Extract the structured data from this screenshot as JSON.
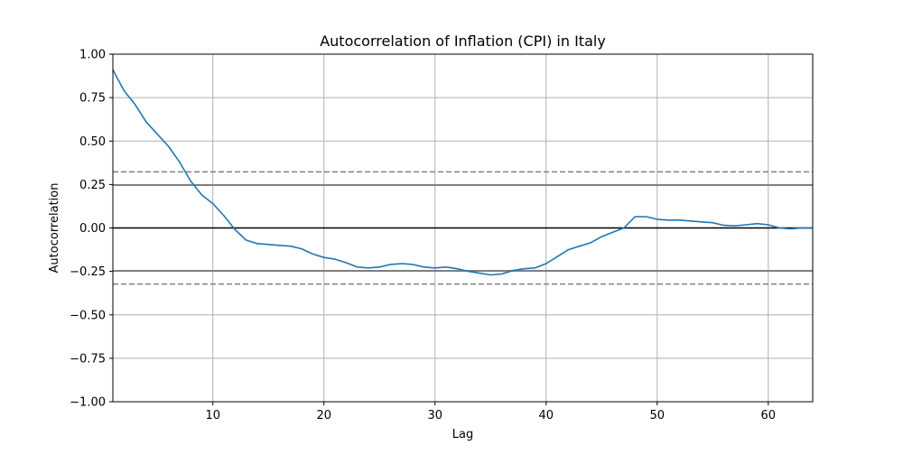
{
  "chart_data": {
    "type": "line",
    "title": "Autocorrelation of Inflation (CPI) in Italy",
    "xlabel": "Lag",
    "ylabel": "Autocorrelation",
    "xlim": [
      1,
      64
    ],
    "ylim": [
      -1.0,
      1.0
    ],
    "xticks": [
      10,
      20,
      30,
      40,
      50,
      60
    ],
    "xtick_labels": [
      "10",
      "20",
      "30",
      "40",
      "50",
      "60"
    ],
    "yticks": [
      -1.0,
      -0.75,
      -0.5,
      -0.25,
      0.0,
      0.25,
      0.5,
      0.75,
      1.0
    ],
    "ytick_labels": [
      "−1.00",
      "−0.75",
      "−0.50",
      "−0.25",
      "0.00",
      "0.25",
      "0.50",
      "0.75",
      "1.00"
    ],
    "grid": true,
    "reference_lines": {
      "zero": 0.0,
      "solid": [
        0.247,
        -0.247
      ],
      "dashed": [
        0.323,
        -0.323
      ]
    },
    "series": [
      {
        "color": "#1f77b4",
        "x": [
          1,
          2,
          3,
          4,
          5,
          6,
          7,
          8,
          9,
          10,
          11,
          12,
          13,
          14,
          15,
          16,
          17,
          18,
          19,
          20,
          21,
          22,
          23,
          24,
          25,
          26,
          27,
          28,
          29,
          30,
          31,
          32,
          33,
          34,
          35,
          36,
          37,
          38,
          39,
          40,
          41,
          42,
          43,
          44,
          45,
          46,
          47,
          48,
          49,
          50,
          51,
          52,
          53,
          54,
          55,
          56,
          57,
          58,
          59,
          60,
          61,
          62,
          63,
          64
        ],
        "values": [
          0.91,
          0.79,
          0.71,
          0.61,
          0.54,
          0.47,
          0.38,
          0.27,
          0.19,
          0.14,
          0.07,
          -0.01,
          -0.07,
          -0.09,
          -0.095,
          -0.1,
          -0.105,
          -0.12,
          -0.15,
          -0.17,
          -0.18,
          -0.2,
          -0.225,
          -0.23,
          -0.225,
          -0.21,
          -0.205,
          -0.21,
          -0.225,
          -0.23,
          -0.225,
          -0.235,
          -0.25,
          -0.26,
          -0.27,
          -0.265,
          -0.245,
          -0.235,
          -0.23,
          -0.205,
          -0.165,
          -0.125,
          -0.105,
          -0.085,
          -0.05,
          -0.025,
          0.0,
          0.065,
          0.065,
          0.05,
          0.045,
          0.045,
          0.04,
          0.035,
          0.03,
          0.015,
          0.012,
          0.018,
          0.025,
          0.018,
          0.0,
          -0.005,
          0.0,
          0.0
        ]
      }
    ]
  }
}
